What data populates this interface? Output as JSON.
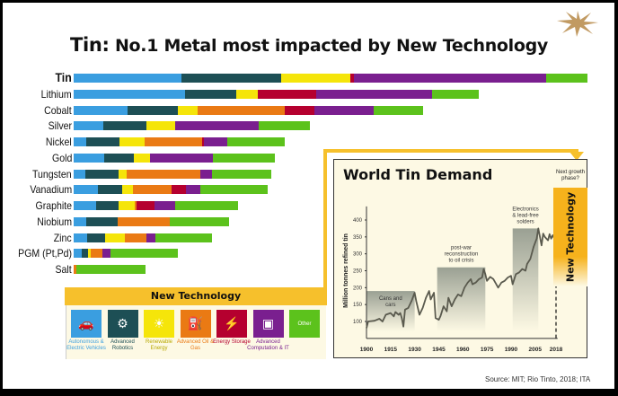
{
  "title": {
    "lead": "Tin:",
    "rest": "No.1 Metal most impacted by New Technology"
  },
  "colors": {
    "autonomous": "#3a9ee0",
    "robotics": "#1d4f55",
    "renewable": "#f5e50a",
    "oilgas": "#ea7a14",
    "storage": "#b5002f",
    "computation": "#7a1f8f",
    "other": "#5cc21c",
    "accent": "#f6c02c",
    "star": "#c19a62"
  },
  "legend": {
    "title": "New Technology",
    "items": [
      {
        "key": "autonomous",
        "label": "Autonomous & Electric Vehicles",
        "icon": "car-icon"
      },
      {
        "key": "robotics",
        "label": "Advanced Robotics",
        "icon": "robot-icon"
      },
      {
        "key": "renewable",
        "label": "Renewable Energy",
        "icon": "wind-solar-icon"
      },
      {
        "key": "oilgas",
        "label": "Advanced Oil & Gas",
        "icon": "oil-rig-icon"
      },
      {
        "key": "storage",
        "label": "Energy Storage",
        "icon": "battery-icon"
      },
      {
        "key": "computation",
        "label": "Advanced Computation & IT",
        "icon": "computer-chip-icon"
      },
      {
        "key": "other",
        "label": "",
        "icon": "",
        "inner_text": "Other"
      }
    ]
  },
  "chart_data": [
    {
      "type": "bar",
      "stacked": true,
      "orientation": "horizontal",
      "categories": [
        "Tin",
        "Lithium",
        "Cobalt",
        "Silver",
        "Nickel",
        "Gold",
        "Tungsten",
        "Vanadium",
        "Graphite",
        "Niobium",
        "Zinc",
        "PGM (Pt,Pd)",
        "Salt"
      ],
      "series": [
        {
          "name": "Autonomous & Electric Vehicles",
          "key": "autonomous",
          "values": [
            20.9,
            21.6,
            10.5,
            5.7,
            2.5,
            5.9,
            2.2,
            4.7,
            4.4,
            2.4,
            2.6,
            1.6,
            0
          ]
        },
        {
          "name": "Advanced Robotics",
          "key": "robotics",
          "values": [
            19.5,
            10.0,
            9.8,
            8.5,
            6.5,
            5.9,
            6.6,
            4.8,
            4.4,
            6.2,
            3.5,
            1.2,
            0
          ]
        },
        {
          "name": "Renewable Energy",
          "key": "renewable",
          "values": [
            13.4,
            4.3,
            3.9,
            5.5,
            4.8,
            3.1,
            1.5,
            2.0,
            3.1,
            0,
            3.9,
            0.5,
            0
          ]
        },
        {
          "name": "Advanced Oil & Gas",
          "key": "oilgas",
          "values": [
            0,
            0,
            16.9,
            0,
            11.2,
            0,
            14.3,
            7.5,
            0.4,
            10.1,
            4.2,
            2.3,
            0.6
          ]
        },
        {
          "name": "Energy Storage",
          "key": "storage",
          "values": [
            0.7,
            11.3,
            5.8,
            0,
            0.4,
            0,
            0,
            2.9,
            3.5,
            0,
            0,
            0,
            0
          ]
        },
        {
          "name": "Advanced Computation & IT",
          "key": "computation",
          "values": [
            37.4,
            22.6,
            11.5,
            16.3,
            4.5,
            12.2,
            2.4,
            2.8,
            4.0,
            0,
            1.7,
            1.6,
            0
          ]
        },
        {
          "name": "Other",
          "key": "other",
          "values": [
            8.1,
            9.0,
            9.6,
            10.0,
            11.1,
            12.1,
            11.4,
            13.0,
            12.2,
            11.5,
            11.1,
            13.0,
            13.4
          ]
        }
      ],
      "xlim": [
        0,
        100
      ],
      "legend": "bottom-left"
    },
    {
      "type": "line",
      "title": "World Tin Demand",
      "ylabel": "Million tonnes refined tin",
      "xlabel": "",
      "xlim": [
        1900,
        2018
      ],
      "ylim": [
        70,
        430
      ],
      "xticks": [
        1900,
        1915,
        1930,
        1945,
        1960,
        1975,
        1990,
        2005,
        2018
      ],
      "yticks": [
        100,
        150,
        200,
        250,
        300,
        350,
        400
      ],
      "x": [
        1900,
        1901,
        1905,
        1908,
        1910,
        1912,
        1915,
        1917,
        1918,
        1920,
        1921,
        1922,
        1923,
        1924,
        1926,
        1928,
        1930,
        1931,
        1933,
        1935,
        1937,
        1939,
        1940,
        1942,
        1943,
        1945,
        1946,
        1948,
        1950,
        1951,
        1953,
        1955,
        1957,
        1959,
        1961,
        1963,
        1965,
        1966,
        1968,
        1970,
        1972,
        1973,
        1974,
        1975,
        1977,
        1979,
        1982,
        1984,
        1986,
        1988,
        1990,
        1991,
        1993,
        1995,
        1997,
        1999,
        2000,
        2002,
        2004,
        2006,
        2007,
        2008,
        2009,
        2010,
        2011,
        2012,
        2013,
        2014,
        2015,
        2016,
        2017,
        2018
      ],
      "y": [
        80,
        100,
        102,
        108,
        100,
        120,
        125,
        115,
        128,
        120,
        125,
        110,
        85,
        135,
        140,
        160,
        185,
        160,
        120,
        140,
        170,
        190,
        165,
        185,
        110,
        105,
        115,
        145,
        130,
        170,
        145,
        165,
        180,
        175,
        200,
        215,
        225,
        210,
        215,
        225,
        230,
        255,
        240,
        220,
        232,
        225,
        200,
        215,
        220,
        230,
        235,
        210,
        240,
        245,
        255,
        250,
        270,
        285,
        320,
        345,
        375,
        350,
        325,
        360,
        350,
        345,
        340,
        358,
        345,
        355,
        345,
        340
      ],
      "annotations": [
        {
          "text": "Cans and cars",
          "x_range": [
            1900,
            1930
          ],
          "top": 190
        },
        {
          "text": "post-war reconstruction to oil crisis",
          "x_range": [
            1944,
            1974
          ],
          "top": 260
        },
        {
          "text": "Electronics & lead-free solders",
          "x_range": [
            1991,
            2007
          ],
          "top": 375
        }
      ],
      "future_marker": {
        "year": 2018,
        "label": "New Technology",
        "note": "Next growth phase?"
      }
    }
  ],
  "source": "Source: MIT; Rio Tinto, 2018; ITA"
}
